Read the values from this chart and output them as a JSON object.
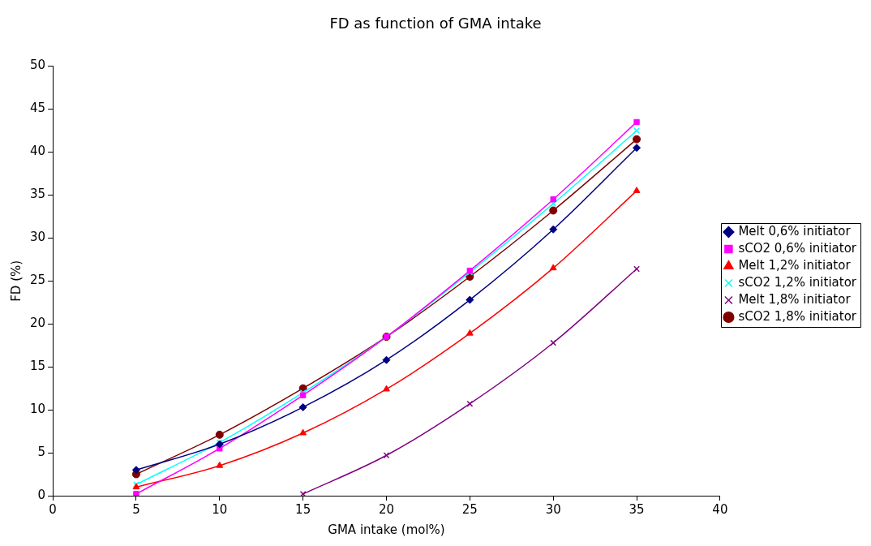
{
  "chart_data": {
    "type": "line",
    "title": "FD as function of GMA intake",
    "xlabel": "GMA intake (mol%)",
    "ylabel": "FD (%)",
    "x": [
      5,
      10,
      15,
      20,
      25,
      30,
      35
    ],
    "series": [
      {
        "name": "Melt 0,6% initiator",
        "color": "#000080",
        "marker": "diamond",
        "values": [
          3.0,
          6.0,
          10.3,
          15.8,
          22.8,
          31.0,
          40.5
        ]
      },
      {
        "name": "sCO2 0,6% initiator",
        "color": "#ff00ff",
        "marker": "square",
        "values": [
          0.2,
          5.5,
          11.7,
          18.5,
          26.2,
          34.5,
          43.5
        ]
      },
      {
        "name": "Melt 1,2% initiator",
        "color": "#ff0000",
        "marker": "triangle",
        "values": [
          1.0,
          3.5,
          7.3,
          12.4,
          18.9,
          26.5,
          35.5
        ]
      },
      {
        "name": "sCO2 1,2% initiator",
        "color": "#00ffff",
        "marker": "cross",
        "values": [
          1.3,
          6.2,
          12.0,
          18.5,
          26.0,
          34.0,
          42.5
        ]
      },
      {
        "name": "Melt 1,8% initiator",
        "color": "#800080",
        "marker": "cross",
        "values": [
          null,
          null,
          0.2,
          4.7,
          10.7,
          17.8,
          26.4
        ]
      },
      {
        "name": "sCO2 1,8% initiator",
        "color": "#800000",
        "marker": "circle",
        "values": [
          2.5,
          7.1,
          12.5,
          18.5,
          25.5,
          33.2,
          41.5
        ]
      }
    ],
    "xlim": [
      0,
      40
    ],
    "xticks": [
      0,
      5,
      10,
      15,
      20,
      25,
      30,
      35,
      40
    ],
    "ylim": [
      0,
      50
    ],
    "yticks": [
      0,
      5,
      10,
      15,
      20,
      25,
      30,
      35,
      40,
      45,
      50
    ],
    "grid": false,
    "legend": "right",
    "line_style": "solid"
  }
}
